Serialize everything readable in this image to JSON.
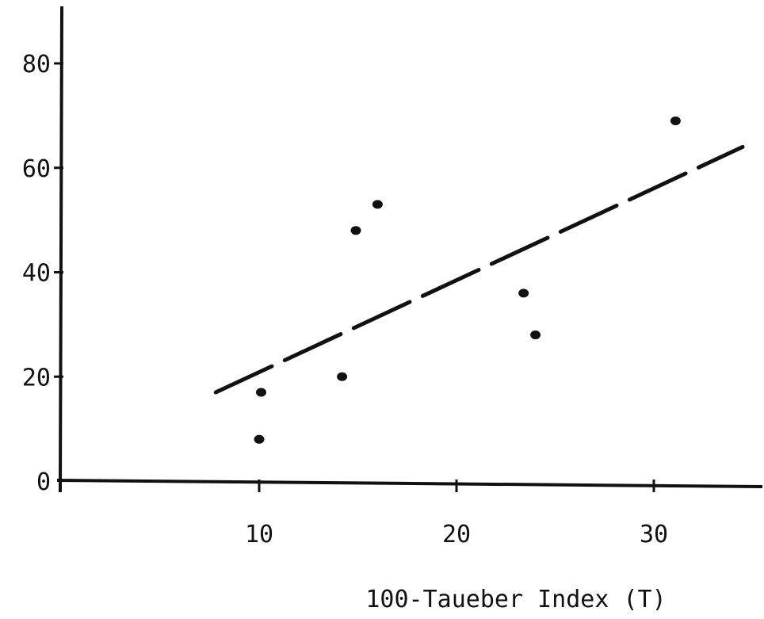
{
  "chart_data": {
    "type": "scatter",
    "title": "",
    "xlabel": "100-Taueber Index (T)",
    "ylabel": "",
    "xlim": [
      0,
      35.5
    ],
    "ylim": [
      0,
      90
    ],
    "x_ticks": [
      {
        "value": 10,
        "label": "10"
      },
      {
        "value": 20,
        "label": "20"
      },
      {
        "value": 30,
        "label": "30"
      }
    ],
    "y_ticks": [
      {
        "value": 0,
        "label": "0"
      },
      {
        "value": 20,
        "label": "20"
      },
      {
        "value": 40,
        "label": "40"
      },
      {
        "value": 60,
        "label": "60"
      },
      {
        "value": 80,
        "label": "80"
      }
    ],
    "grid": false,
    "points": [
      {
        "x": 10.1,
        "y": 17
      },
      {
        "x": 10.0,
        "y": 8
      },
      {
        "x": 14.2,
        "y": 20
      },
      {
        "x": 14.9,
        "y": 48
      },
      {
        "x": 16.0,
        "y": 53
      },
      {
        "x": 23.4,
        "y": 36
      },
      {
        "x": 24.0,
        "y": 28
      },
      {
        "x": 31.1,
        "y": 69
      }
    ],
    "trend_line": {
      "style": "dashed",
      "start": {
        "x": 7.8,
        "y": 17
      },
      "end": {
        "x": 34.5,
        "y": 64
      }
    },
    "colors": {
      "ink": "#111111",
      "background": "#ffffff"
    }
  }
}
